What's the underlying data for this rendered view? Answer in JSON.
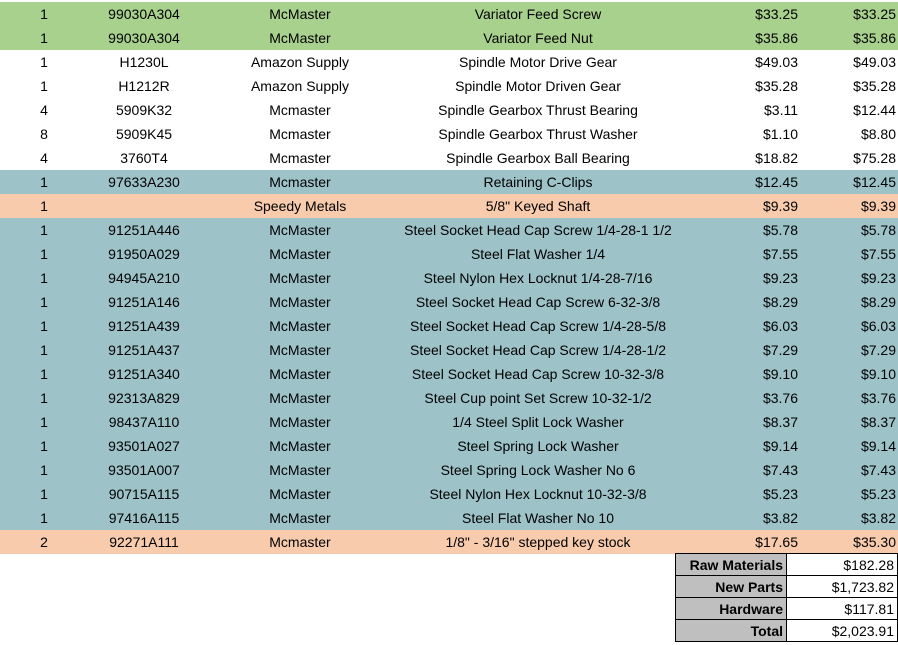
{
  "colors": {
    "green": "#a9d18e",
    "white": "#ffffff",
    "teal": "#9dc3c9",
    "orange": "#f8cbad",
    "gray": "#bfbfbf"
  },
  "rows": [
    {
      "qty": "1",
      "part": "99030A304",
      "vendor": "McMaster",
      "desc": "Variator Feed Screw",
      "unit": "$33.25",
      "total": "$33.25",
      "color": "green"
    },
    {
      "qty": "1",
      "part": "99030A304",
      "vendor": "McMaster",
      "desc": "Variator Feed Nut",
      "unit": "$35.86",
      "total": "$35.86",
      "color": "green"
    },
    {
      "qty": "1",
      "part": "H1230L",
      "vendor": "Amazon Supply",
      "desc": "Spindle Motor Drive Gear",
      "unit": "$49.03",
      "total": "$49.03",
      "color": "white"
    },
    {
      "qty": "1",
      "part": "H1212R",
      "vendor": "Amazon Supply",
      "desc": "Spindle Motor Driven Gear",
      "unit": "$35.28",
      "total": "$35.28",
      "color": "white"
    },
    {
      "qty": "4",
      "part": "5909K32",
      "vendor": "Mcmaster",
      "desc": "Spindle Gearbox Thrust Bearing",
      "unit": "$3.11",
      "total": "$12.44",
      "color": "white"
    },
    {
      "qty": "8",
      "part": "5909K45",
      "vendor": "Mcmaster",
      "desc": "Spindle Gearbox Thrust Washer",
      "unit": "$1.10",
      "total": "$8.80",
      "color": "white"
    },
    {
      "qty": "4",
      "part": "3760T4",
      "vendor": "Mcmaster",
      "desc": "Spindle Gearbox Ball Bearing",
      "unit": "$18.82",
      "total": "$75.28",
      "color": "white"
    },
    {
      "qty": "1",
      "part": "97633A230",
      "vendor": "Mcmaster",
      "desc": "Retaining C-Clips",
      "unit": "$12.45",
      "total": "$12.45",
      "color": "teal"
    },
    {
      "qty": "1",
      "part": "",
      "vendor": "Speedy Metals",
      "desc": "5/8\" Keyed Shaft",
      "unit": "$9.39",
      "total": "$9.39",
      "color": "orange"
    },
    {
      "qty": "1",
      "part": "91251A446",
      "vendor": "McMaster",
      "desc": "Steel Socket Head Cap Screw 1/4-28-1 1/2",
      "unit": "$5.78",
      "total": "$5.78",
      "color": "teal"
    },
    {
      "qty": "1",
      "part": "91950A029",
      "vendor": "McMaster",
      "desc": "Steel Flat Washer 1/4",
      "unit": "$7.55",
      "total": "$7.55",
      "color": "teal"
    },
    {
      "qty": "1",
      "part": "94945A210",
      "vendor": "McMaster",
      "desc": "Steel Nylon Hex Locknut 1/4-28-7/16",
      "unit": "$9.23",
      "total": "$9.23",
      "color": "teal"
    },
    {
      "qty": "1",
      "part": "91251A146",
      "vendor": "McMaster",
      "desc": "Steel Socket Head Cap Screw 6-32-3/8",
      "unit": "$8.29",
      "total": "$8.29",
      "color": "teal"
    },
    {
      "qty": "1",
      "part": "91251A439",
      "vendor": "McMaster",
      "desc": "Steel Socket Head Cap Screw 1/4-28-5/8",
      "unit": "$6.03",
      "total": "$6.03",
      "color": "teal"
    },
    {
      "qty": "1",
      "part": "91251A437",
      "vendor": "McMaster",
      "desc": "Steel Socket Head Cap Screw 1/4-28-1/2",
      "unit": "$7.29",
      "total": "$7.29",
      "color": "teal"
    },
    {
      "qty": "1",
      "part": "91251A340",
      "vendor": "McMaster",
      "desc": "Steel Socket Head Cap Screw 10-32-3/8",
      "unit": "$9.10",
      "total": "$9.10",
      "color": "teal"
    },
    {
      "qty": "1",
      "part": "92313A829",
      "vendor": "McMaster",
      "desc": "Steel Cup point Set Screw 10-32-1/2",
      "unit": "$3.76",
      "total": "$3.76",
      "color": "teal"
    },
    {
      "qty": "1",
      "part": "98437A110",
      "vendor": "McMaster",
      "desc": "1/4 Steel Split Lock Washer",
      "unit": "$8.37",
      "total": "$8.37",
      "color": "teal"
    },
    {
      "qty": "1",
      "part": "93501A027",
      "vendor": "McMaster",
      "desc": "Steel Spring Lock Washer",
      "unit": "$9.14",
      "total": "$9.14",
      "color": "teal"
    },
    {
      "qty": "1",
      "part": "93501A007",
      "vendor": "McMaster",
      "desc": "Steel Spring Lock Washer No 6",
      "unit": "$7.43",
      "total": "$7.43",
      "color": "teal"
    },
    {
      "qty": "1",
      "part": "90715A115",
      "vendor": "McMaster",
      "desc": "Steel Nylon Hex Locknut 10-32-3/8",
      "unit": "$5.23",
      "total": "$5.23",
      "color": "teal"
    },
    {
      "qty": "1",
      "part": "97416A115",
      "vendor": "McMaster",
      "desc": "Steel Flat Washer No 10",
      "unit": "$3.82",
      "total": "$3.82",
      "color": "teal"
    },
    {
      "qty": "2",
      "part": "92271A111",
      "vendor": "Mcmaster",
      "desc": "1/8\" - 3/16\" stepped key stock",
      "unit": "$17.65",
      "total": "$35.30",
      "color": "orange"
    }
  ],
  "summary": [
    {
      "label": "Raw Materials",
      "value": "$182.28"
    },
    {
      "label": "New Parts",
      "value": "$1,723.82"
    },
    {
      "label": "Hardware",
      "value": "$117.81"
    },
    {
      "label": "Total",
      "value": "$2,023.91"
    }
  ]
}
